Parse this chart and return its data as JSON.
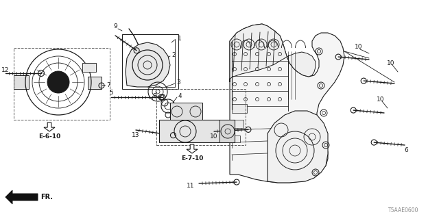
{
  "bg_color": "#ffffff",
  "line_color": "#1a1a1a",
  "diagram_code": "T5AAE0600",
  "fig_w": 6.4,
  "fig_h": 3.2,
  "dpi": 100,
  "xlim": [
    0,
    640
  ],
  "ylim": [
    0,
    320
  ]
}
